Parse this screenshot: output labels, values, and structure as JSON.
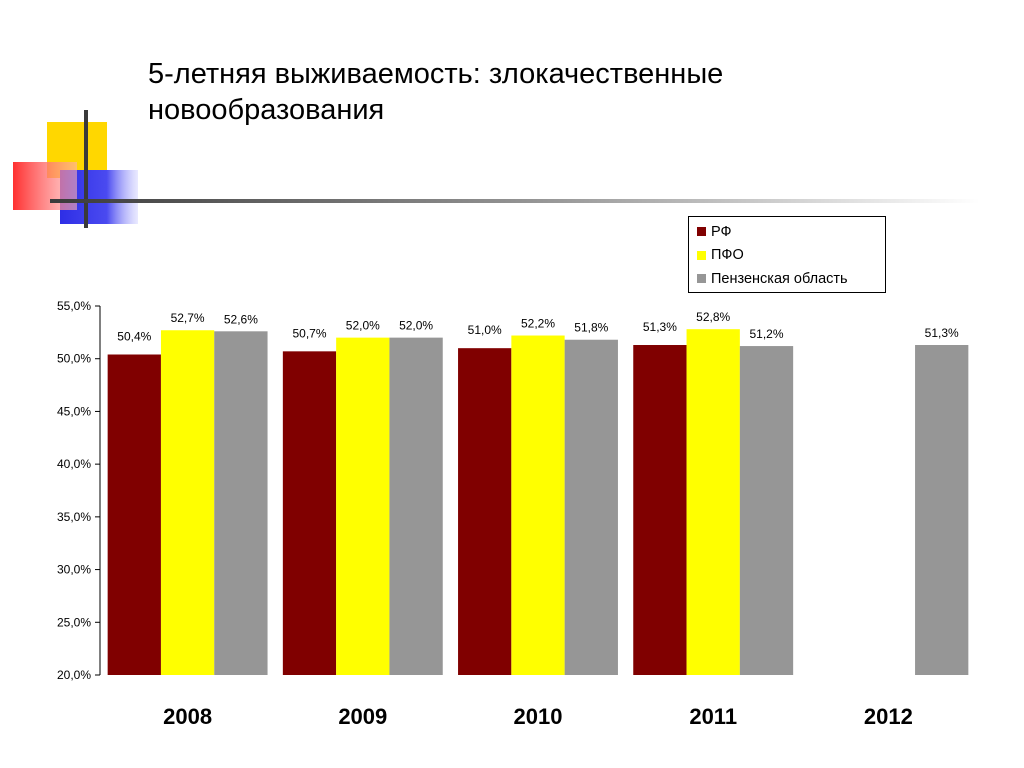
{
  "slide": {
    "title_line1": "5-летняя выживаемость: злокачественные",
    "title_line2": "новообразования"
  },
  "colors": {
    "series_rf": "#800000",
    "series_pfo": "#FFFF00",
    "series_penza": "#969696",
    "deco_yellow": "#FFD700",
    "deco_blue": "#2E2EE6",
    "deco_red": "#FF4040",
    "deco_line": "#3a3a3a"
  },
  "chart_data": {
    "type": "bar",
    "title": "",
    "xlabel": "",
    "ylabel": "",
    "categories": [
      "2008",
      "2009",
      "2010",
      "2011",
      "2012"
    ],
    "series": [
      {
        "name": "РФ",
        "color": "#800000",
        "values": [
          50.4,
          50.7,
          51.0,
          51.3,
          null
        ],
        "labels": [
          "50,4%",
          "50,7%",
          "51,0%",
          "51,3%",
          ""
        ]
      },
      {
        "name": "ПФО",
        "color": "#FFFF00",
        "values": [
          52.7,
          52.0,
          52.2,
          52.8,
          null
        ],
        "labels": [
          "52,7%",
          "52,0%",
          "52,2%",
          "52,8%",
          ""
        ]
      },
      {
        "name": "Пензенская область",
        "color": "#969696",
        "values": [
          52.6,
          52.0,
          51.8,
          51.2,
          51.3
        ],
        "labels": [
          "52,6%",
          "52,0%",
          "51,8%",
          "51,2%",
          "51,3%"
        ]
      }
    ],
    "ylim": [
      20,
      55
    ],
    "yticks": [
      20,
      25,
      30,
      35,
      40,
      45,
      50,
      55
    ],
    "ytick_labels": [
      "20,0%",
      "25,0%",
      "30,0%",
      "35,0%",
      "40,0%",
      "45,0%",
      "50,0%",
      "55,0%"
    ],
    "grid": false,
    "legend_position": "top-right"
  }
}
